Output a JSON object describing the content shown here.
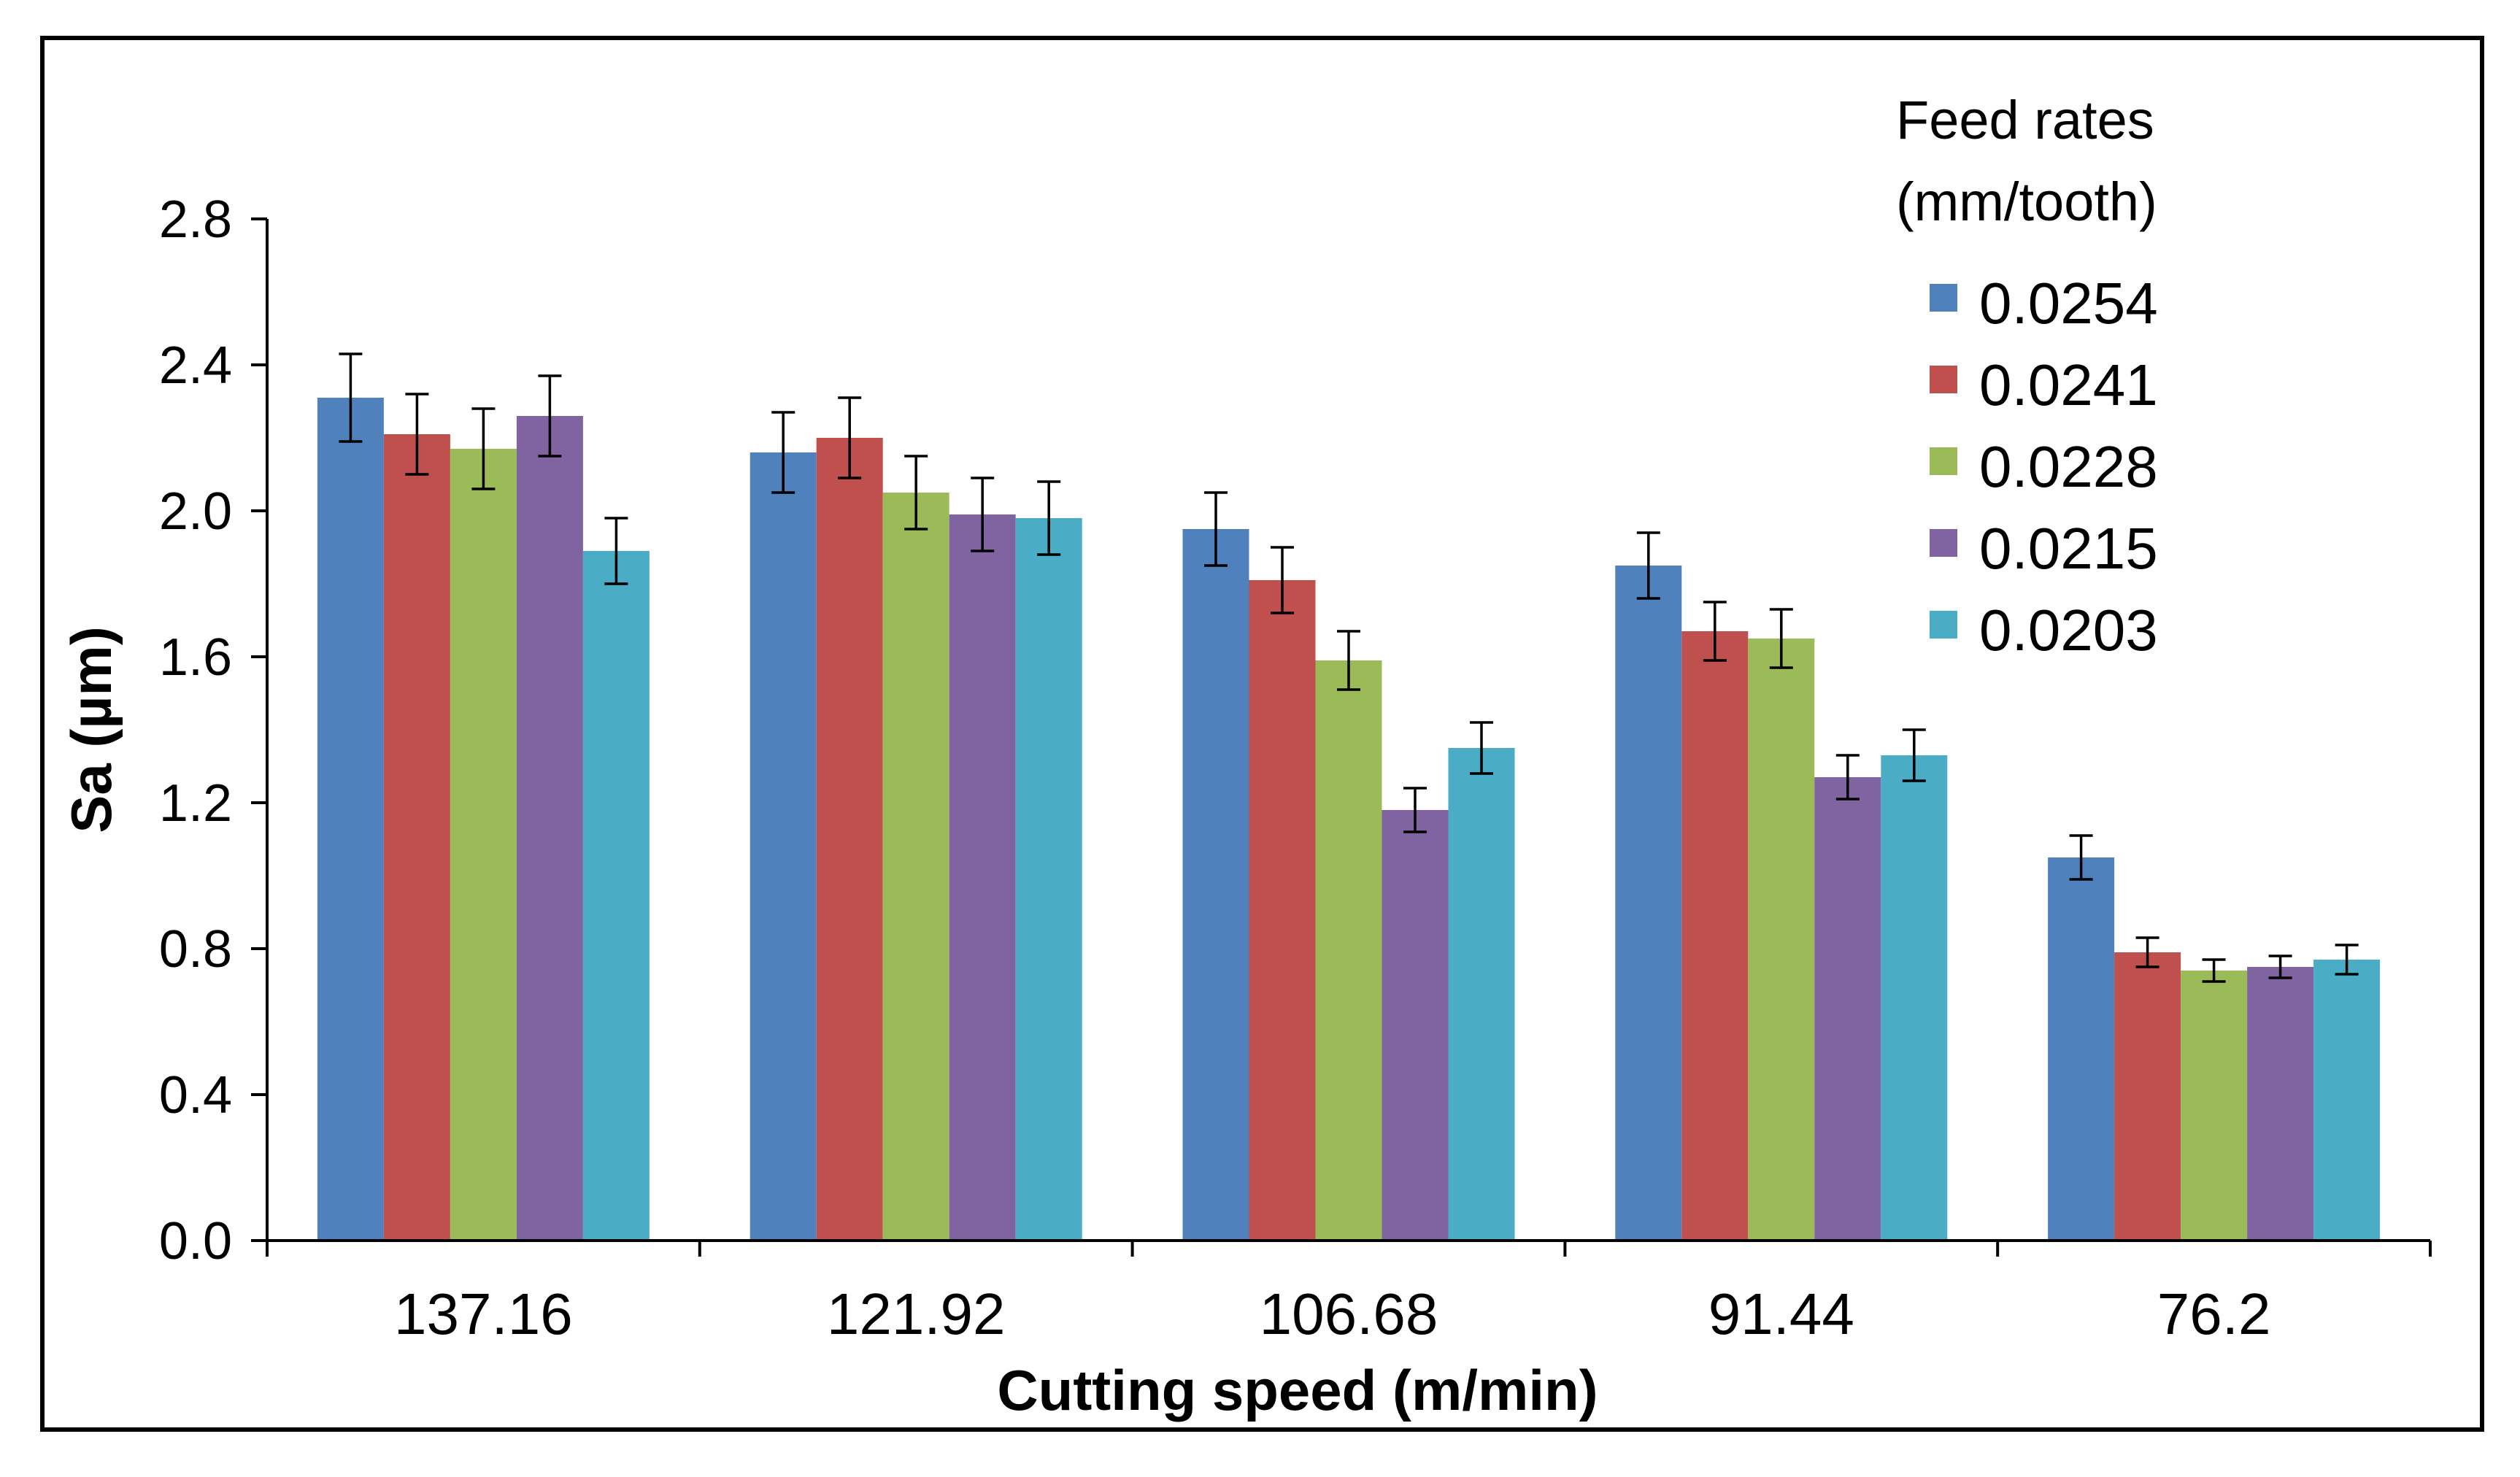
{
  "chart_data": {
    "type": "bar",
    "title": "",
    "xlabel": "Cutting speed (m/min)",
    "ylabel": "Sa (µm)",
    "ylim": [
      0,
      2.8
    ],
    "yticks": [
      0.0,
      0.4,
      0.8,
      1.2,
      1.6,
      2.0,
      2.4,
      2.8
    ],
    "ytick_labels": [
      "0.0",
      "0.4",
      "0.8",
      "1.2",
      "1.6",
      "2.0",
      "2.4",
      "2.8"
    ],
    "categories": [
      "137.16",
      "121.92",
      "106.68",
      "91.44",
      "76.2"
    ],
    "legend": {
      "title_line1": "Feed rates",
      "title_line2": "(mm/tooth)",
      "placement": "top-right"
    },
    "series": [
      {
        "name": "0.0254",
        "color": "#4F81BD",
        "values": [
          2.31,
          2.16,
          1.95,
          1.85,
          1.05
        ],
        "errors": [
          0.12,
          0.11,
          0.1,
          0.09,
          0.06
        ]
      },
      {
        "name": "0.0241",
        "color": "#C0504D",
        "values": [
          2.21,
          2.2,
          1.81,
          1.67,
          0.79
        ],
        "errors": [
          0.11,
          0.11,
          0.09,
          0.08,
          0.04
        ]
      },
      {
        "name": "0.0228",
        "color": "#9BBB59",
        "values": [
          2.17,
          2.05,
          1.59,
          1.65,
          0.74
        ],
        "errors": [
          0.11,
          0.1,
          0.08,
          0.08,
          0.03
        ]
      },
      {
        "name": "0.0215",
        "color": "#8064A2",
        "values": [
          2.26,
          1.99,
          1.18,
          1.27,
          0.75
        ],
        "errors": [
          0.11,
          0.1,
          0.06,
          0.06,
          0.03
        ]
      },
      {
        "name": "0.0203",
        "color": "#4BACC6",
        "values": [
          1.89,
          1.98,
          1.35,
          1.33,
          0.77
        ],
        "errors": [
          0.09,
          0.1,
          0.07,
          0.07,
          0.04
        ]
      }
    ],
    "grid": false
  }
}
